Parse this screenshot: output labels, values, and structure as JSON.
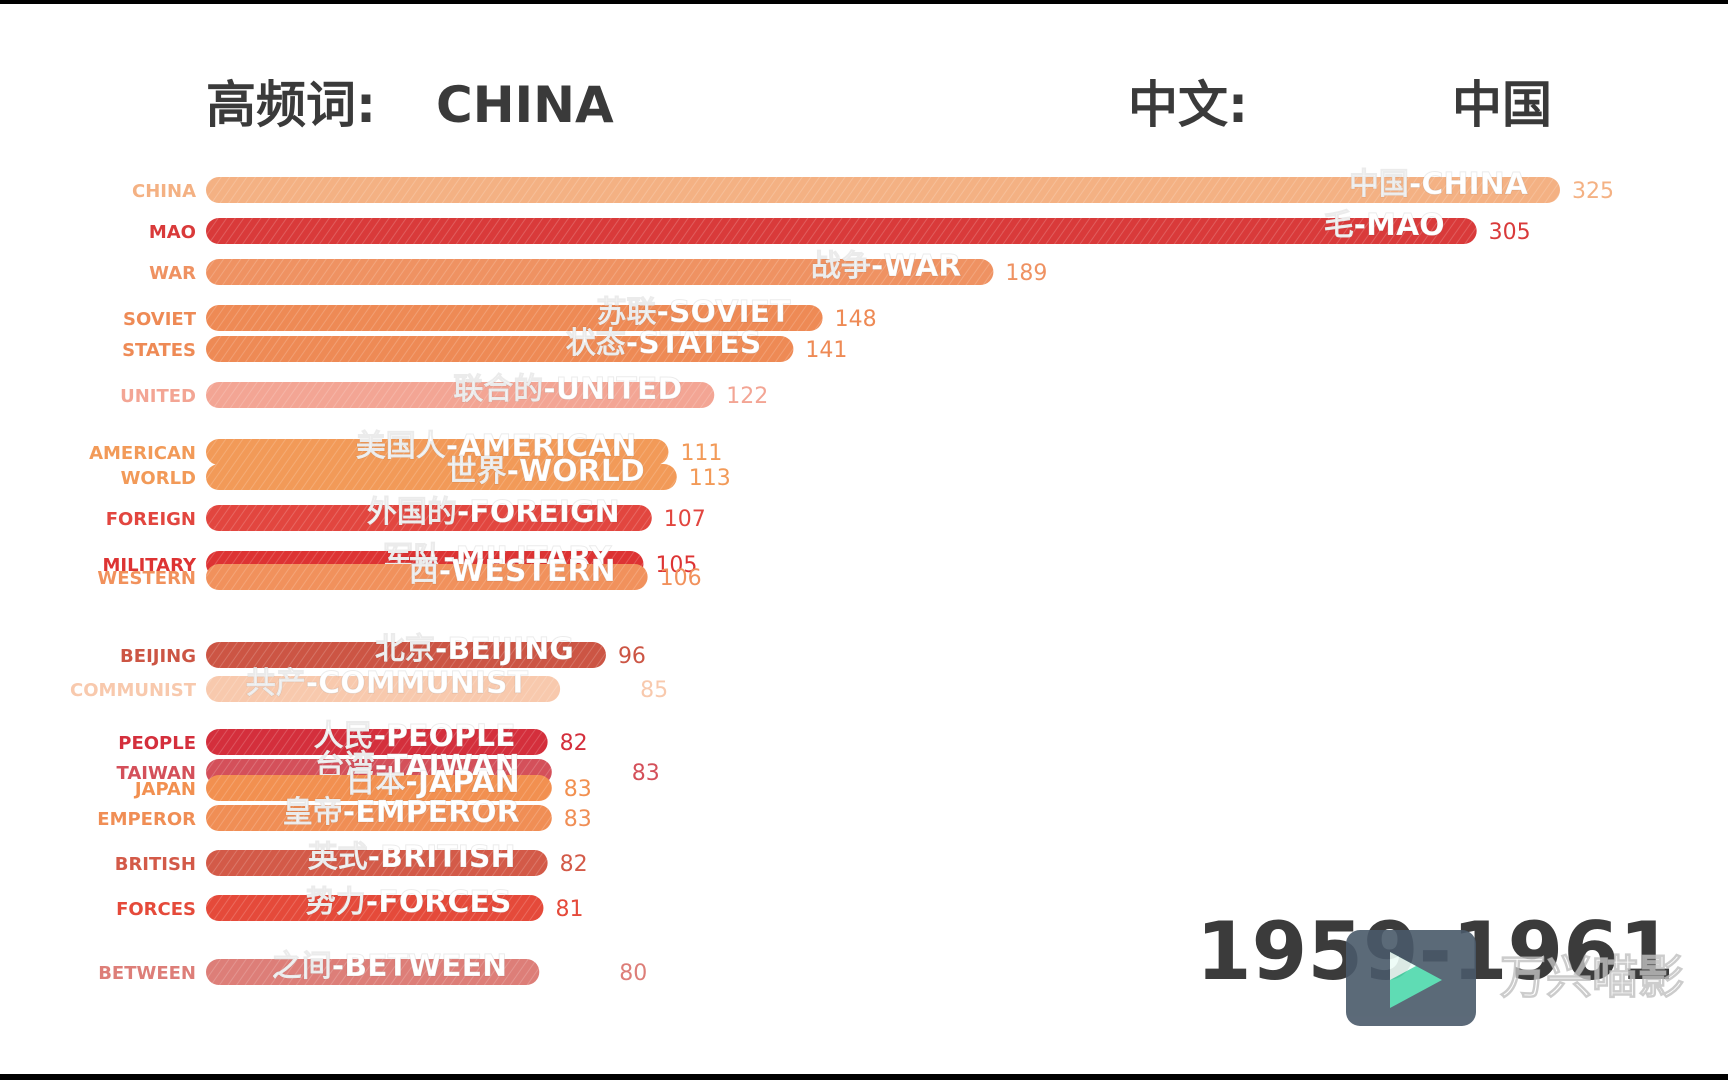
{
  "header": {
    "left_label": "高频词:",
    "left_value": "CHINA",
    "right_label": "中文:",
    "right_value": "中国"
  },
  "period": "1959-1961",
  "watermark": {
    "text": "万兴喵影",
    "icon": "play-triangle-icon"
  },
  "chart_data": {
    "type": "bar",
    "orientation": "horizontal",
    "title": "",
    "xlabel": "",
    "ylabel": "",
    "xlim": [
      0,
      325
    ],
    "grid": false,
    "legend": "none",
    "bars": [
      {
        "category": "CHINA",
        "label": "中国-CHINA",
        "value": 325,
        "color": "#f4b183"
      },
      {
        "category": "MAO",
        "label": "毛-MAO",
        "value": 305,
        "color": "#d93a3a"
      },
      {
        "category": "WAR",
        "label": "战争-WAR",
        "value": 189,
        "color": "#ef9262"
      },
      {
        "category": "SOVIET",
        "label": "苏联-SOVIET",
        "value": 148,
        "color": "#ee8a55"
      },
      {
        "category": "STATES",
        "label": "状态-STATES",
        "value": 141,
        "color": "#ee8a55"
      },
      {
        "category": "UNITED",
        "label": "联合的-UNITED",
        "value": 122,
        "color": "#f3a594"
      },
      {
        "category": "AMERICAN",
        "label": "美国人-AMERICAN",
        "value": 111,
        "color": "#f29a58"
      },
      {
        "category": "WORLD",
        "label": "世界-WORLD",
        "value": 113,
        "color": "#f29a58"
      },
      {
        "category": "FOREIGN",
        "label": "外国的-FOREIGN",
        "value": 107,
        "color": "#e2463f"
      },
      {
        "category": "MILITARY",
        "label": "军队-MILITARY",
        "value": 105,
        "color": "#dd3333"
      },
      {
        "category": "WESTERN",
        "label": "西-WESTERN",
        "value": 106,
        "color": "#f1915c"
      },
      {
        "category": "BEIJING",
        "label": "北京-BEIJING",
        "value": 96,
        "color": "#cc5544"
      },
      {
        "category": "COMMUNIST",
        "label": "共产-COMMUNIST",
        "value": 85,
        "color": "#f8c9ad"
      },
      {
        "category": "PEOPLE",
        "label": "人民-PEOPLE",
        "value": 82,
        "color": "#d42f3c"
      },
      {
        "category": "TAIWAN",
        "label": "台湾-TAIWAN",
        "value": 83,
        "color": "#d4505a"
      },
      {
        "category": "JAPAN",
        "label": "日本-JAPAN",
        "value": 83,
        "color": "#f29050"
      },
      {
        "category": "EMPEROR",
        "label": "皇帝-EMPEROR",
        "value": 83,
        "color": "#f08e55"
      },
      {
        "category": "BRITISH",
        "label": "英式-BRITISH",
        "value": 82,
        "color": "#d35a48"
      },
      {
        "category": "FORCES",
        "label": "势力-FORCES",
        "value": 81,
        "color": "#e54a3a"
      },
      {
        "category": "BETWEEN",
        "label": "之间-BETWEEN",
        "value": 80,
        "color": "#dd7e78"
      }
    ]
  }
}
